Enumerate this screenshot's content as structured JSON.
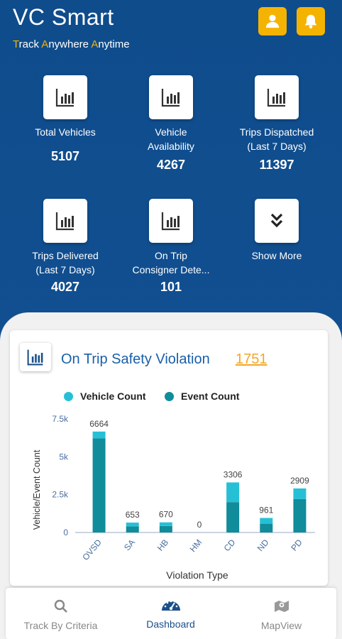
{
  "header": {
    "title": "VC Smart",
    "tagline": [
      {
        "first": "T",
        "rest": "rack"
      },
      {
        "first": "A",
        "rest": "nywhere"
      },
      {
        "first": "A",
        "rest": "nytime"
      }
    ],
    "profile_icon": "user-icon",
    "notification_icon": "bell-icon",
    "accent_color": "#f5b301"
  },
  "tiles": [
    {
      "label": "Total  Vehicles",
      "value": "5107",
      "icon": "bar-chart-icon"
    },
    {
      "label": "Vehicle\nAvailability",
      "value": "4267",
      "icon": "bar-chart-icon"
    },
    {
      "label": "Trips  Dispatched\n(Last 7 Days)",
      "value": "11397",
      "icon": "bar-chart-icon"
    },
    {
      "label": "Trips  Delivered\n(Last 7 Days)",
      "value": "4027",
      "icon": "bar-chart-icon"
    },
    {
      "label": "On  Trip\nConsigner Dete...",
      "value": "101",
      "icon": "bar-chart-icon"
    },
    {
      "label": "Show  More",
      "value": "",
      "icon": "double-chevron-down-icon"
    }
  ],
  "violation_card": {
    "title": "On Trip Safety Violation",
    "count": "1751"
  },
  "chart_data": {
    "type": "bar",
    "stacked": true,
    "categories": [
      "OVSD",
      "SA",
      "HB",
      "HM",
      "CD",
      "ND",
      "PD"
    ],
    "totals": [
      6664,
      653,
      670,
      0,
      3306,
      961,
      2909
    ],
    "series": [
      {
        "name": "Vehicle Count",
        "color": "#26c0d6",
        "values": [
          450,
          250,
          240,
          0,
          1300,
          380,
          700
        ]
      },
      {
        "name": "Event Count",
        "color": "#118c9a",
        "values": [
          6214,
          403,
          430,
          0,
          2006,
          581,
          2209
        ]
      }
    ],
    "xlabel": "Violation Type",
    "ylabel": "Vehicle/Event Count",
    "yticks": [
      "0",
      "2.5k",
      "5k",
      "7.5k"
    ],
    "ylim": [
      0,
      7500
    ],
    "legend_position": "top"
  },
  "nav": [
    {
      "label": "Track By Criteria",
      "icon": "search-icon",
      "active": false
    },
    {
      "label": "Dashboard",
      "icon": "speedometer-icon",
      "active": true
    },
    {
      "label": "MapView",
      "icon": "map-icon",
      "active": false
    }
  ]
}
